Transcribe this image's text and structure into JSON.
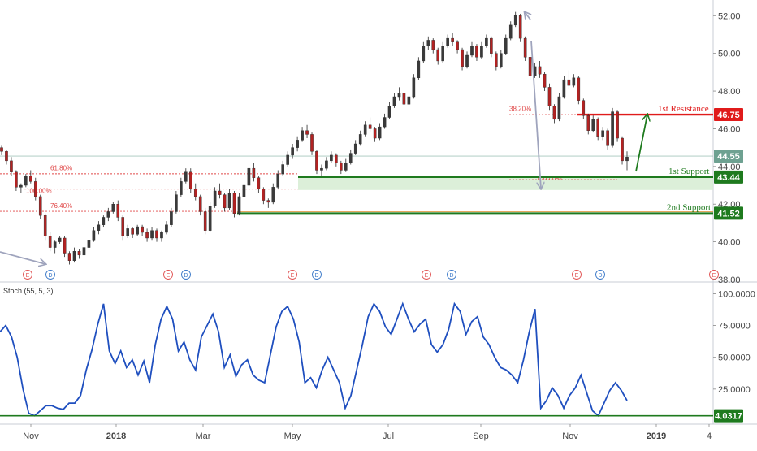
{
  "chart_data": {
    "type": "candlestick",
    "price_axis": {
      "ticks": [
        "52.00",
        "50.00",
        "48.00",
        "46.00",
        "44.00",
        "42.00",
        "40.00",
        "38.00"
      ],
      "range": [
        38.0,
        52.4
      ]
    },
    "time_axis": {
      "labels": [
        "Nov",
        "2018",
        "Mar",
        "May",
        "Jul",
        "Sep",
        "Nov",
        "2019",
        "4"
      ]
    },
    "current_price": "44.55",
    "levels": [
      {
        "key": "res1",
        "label": "1st Resistance",
        "value": 46.75,
        "tag": "46.75",
        "color": "#e01b1b"
      },
      {
        "key": "sup1",
        "label": "1st Support",
        "value": 43.44,
        "tag": "43.44",
        "color": "#1e7a1e"
      },
      {
        "key": "sup2",
        "label": "2nd Support",
        "value": 41.52,
        "tag": "41.52",
        "color": "#1e7a1e"
      }
    ],
    "fib_labels": {
      "f618": "61.80%",
      "f100a": "100.00%",
      "f764": "76.40%",
      "f382": "38.20%",
      "f100b": "100.00%"
    },
    "event_markers": [
      "E",
      "D",
      "E",
      "D",
      "E",
      "D",
      "E",
      "D",
      "E",
      "D",
      "E"
    ],
    "oscillator": {
      "name": "Stoch (55, 5, 3)",
      "ticks": [
        "100.0000",
        "75.0000",
        "50.0000",
        "25.0000"
      ],
      "range": [
        0,
        100
      ],
      "support_value": 4.0317,
      "support_tag": "4.0317",
      "values": [
        70,
        75,
        66,
        50,
        25,
        6,
        4,
        8,
        12,
        12,
        10,
        9,
        14,
        14,
        20,
        40,
        56,
        76,
        92,
        55,
        45,
        55,
        42,
        48,
        36,
        47,
        30,
        60,
        80,
        90,
        80,
        55,
        62,
        48,
        40,
        66,
        75,
        84,
        70,
        42,
        52,
        35,
        44,
        48,
        36,
        32,
        30,
        52,
        74,
        86,
        90,
        80,
        62,
        30,
        34,
        26,
        40,
        50,
        40,
        30,
        10,
        20,
        40,
        60,
        82,
        92,
        86,
        74,
        68,
        80,
        92,
        80,
        70,
        76,
        80,
        60,
        54,
        60,
        72,
        92,
        86,
        68,
        78,
        82,
        66,
        60,
        50,
        42,
        40,
        36,
        30,
        48,
        70,
        88,
        10,
        16,
        26,
        20,
        10,
        20,
        26,
        36,
        22,
        8,
        4,
        14,
        24,
        30,
        24,
        16
      ]
    },
    "candles": [
      {
        "o": 45.0,
        "h": 45.1,
        "l": 44.6,
        "c": 44.8
      },
      {
        "o": 44.8,
        "h": 44.9,
        "l": 44.1,
        "c": 44.3
      },
      {
        "o": 44.3,
        "h": 44.5,
        "l": 43.5,
        "c": 43.7
      },
      {
        "o": 43.7,
        "h": 43.8,
        "l": 42.7,
        "c": 42.9
      },
      {
        "o": 42.9,
        "h": 43.1,
        "l": 42.6,
        "c": 43.0
      },
      {
        "o": 43.0,
        "h": 43.6,
        "l": 42.9,
        "c": 43.5
      },
      {
        "o": 43.5,
        "h": 43.8,
        "l": 43.1,
        "c": 43.2
      },
      {
        "o": 43.2,
        "h": 43.4,
        "l": 42.2,
        "c": 42.4
      },
      {
        "o": 42.4,
        "h": 42.5,
        "l": 41.2,
        "c": 41.4
      },
      {
        "o": 41.4,
        "h": 41.5,
        "l": 40.1,
        "c": 40.3
      },
      {
        "o": 40.3,
        "h": 40.5,
        "l": 39.5,
        "c": 39.7
      },
      {
        "o": 39.7,
        "h": 40.1,
        "l": 39.4,
        "c": 40.0
      },
      {
        "o": 40.0,
        "h": 40.3,
        "l": 39.9,
        "c": 40.2
      },
      {
        "o": 40.2,
        "h": 40.3,
        "l": 39.2,
        "c": 39.4
      },
      {
        "o": 39.4,
        "h": 39.5,
        "l": 38.8,
        "c": 39.0
      },
      {
        "o": 39.0,
        "h": 39.7,
        "l": 38.9,
        "c": 39.5
      },
      {
        "o": 39.5,
        "h": 39.6,
        "l": 39.1,
        "c": 39.3
      },
      {
        "o": 39.3,
        "h": 39.8,
        "l": 39.2,
        "c": 39.7
      },
      {
        "o": 39.7,
        "h": 40.2,
        "l": 39.6,
        "c": 40.1
      },
      {
        "o": 40.1,
        "h": 40.8,
        "l": 40.0,
        "c": 40.6
      },
      {
        "o": 40.6,
        "h": 41.1,
        "l": 40.4,
        "c": 40.9
      },
      {
        "o": 40.9,
        "h": 41.4,
        "l": 40.8,
        "c": 41.3
      },
      {
        "o": 41.3,
        "h": 41.8,
        "l": 41.1,
        "c": 41.6
      },
      {
        "o": 41.6,
        "h": 42.1,
        "l": 41.5,
        "c": 42.0
      },
      {
        "o": 42.0,
        "h": 42.2,
        "l": 41.1,
        "c": 41.3
      },
      {
        "o": 41.3,
        "h": 41.4,
        "l": 40.1,
        "c": 40.3
      },
      {
        "o": 40.3,
        "h": 40.9,
        "l": 40.2,
        "c": 40.7
      },
      {
        "o": 40.7,
        "h": 40.8,
        "l": 40.2,
        "c": 40.4
      },
      {
        "o": 40.4,
        "h": 40.9,
        "l": 40.3,
        "c": 40.8
      },
      {
        "o": 40.8,
        "h": 40.9,
        "l": 40.3,
        "c": 40.5
      },
      {
        "o": 40.5,
        "h": 40.7,
        "l": 40.0,
        "c": 40.2
      },
      {
        "o": 40.2,
        "h": 40.8,
        "l": 40.1,
        "c": 40.6
      },
      {
        "o": 40.6,
        "h": 40.7,
        "l": 40.0,
        "c": 40.2
      },
      {
        "o": 40.2,
        "h": 40.6,
        "l": 40.0,
        "c": 40.5
      },
      {
        "o": 40.5,
        "h": 41.1,
        "l": 40.4,
        "c": 40.9
      },
      {
        "o": 40.9,
        "h": 41.8,
        "l": 40.8,
        "c": 41.6
      },
      {
        "o": 41.6,
        "h": 42.7,
        "l": 41.5,
        "c": 42.5
      },
      {
        "o": 42.5,
        "h": 43.4,
        "l": 42.4,
        "c": 43.2
      },
      {
        "o": 43.2,
        "h": 43.9,
        "l": 43.1,
        "c": 43.7
      },
      {
        "o": 43.7,
        "h": 43.9,
        "l": 42.6,
        "c": 42.8
      },
      {
        "o": 42.8,
        "h": 43.1,
        "l": 42.2,
        "c": 42.4
      },
      {
        "o": 42.4,
        "h": 42.5,
        "l": 41.4,
        "c": 41.6
      },
      {
        "o": 41.6,
        "h": 41.8,
        "l": 40.4,
        "c": 40.6
      },
      {
        "o": 40.6,
        "h": 42.1,
        "l": 40.5,
        "c": 41.9
      },
      {
        "o": 41.9,
        "h": 42.9,
        "l": 41.8,
        "c": 42.7
      },
      {
        "o": 42.7,
        "h": 43.1,
        "l": 42.3,
        "c": 42.5
      },
      {
        "o": 42.5,
        "h": 42.6,
        "l": 41.6,
        "c": 41.8
      },
      {
        "o": 41.8,
        "h": 42.8,
        "l": 41.7,
        "c": 42.6
      },
      {
        "o": 42.6,
        "h": 42.7,
        "l": 41.3,
        "c": 41.5
      },
      {
        "o": 41.5,
        "h": 42.6,
        "l": 41.4,
        "c": 42.4
      },
      {
        "o": 42.4,
        "h": 43.2,
        "l": 42.3,
        "c": 43.0
      },
      {
        "o": 43.0,
        "h": 44.1,
        "l": 42.9,
        "c": 43.9
      },
      {
        "o": 43.9,
        "h": 44.2,
        "l": 43.2,
        "c": 43.4
      },
      {
        "o": 43.4,
        "h": 43.5,
        "l": 42.6,
        "c": 42.8
      },
      {
        "o": 42.8,
        "h": 42.9,
        "l": 42.0,
        "c": 42.2
      },
      {
        "o": 42.2,
        "h": 42.3,
        "l": 41.8,
        "c": 42.1
      },
      {
        "o": 42.1,
        "h": 43.1,
        "l": 42.0,
        "c": 42.9
      },
      {
        "o": 42.9,
        "h": 43.8,
        "l": 42.8,
        "c": 43.6
      },
      {
        "o": 43.6,
        "h": 44.3,
        "l": 43.5,
        "c": 44.1
      },
      {
        "o": 44.1,
        "h": 44.8,
        "l": 44.0,
        "c": 44.6
      },
      {
        "o": 44.6,
        "h": 45.2,
        "l": 44.4,
        "c": 45.0
      },
      {
        "o": 45.0,
        "h": 45.6,
        "l": 44.8,
        "c": 45.4
      },
      {
        "o": 45.4,
        "h": 46.1,
        "l": 45.3,
        "c": 45.9
      },
      {
        "o": 45.9,
        "h": 46.2,
        "l": 45.5,
        "c": 45.7
      },
      {
        "o": 45.7,
        "h": 45.8,
        "l": 44.6,
        "c": 44.8
      },
      {
        "o": 44.8,
        "h": 44.9,
        "l": 43.6,
        "c": 43.8
      },
      {
        "o": 43.8,
        "h": 44.1,
        "l": 43.5,
        "c": 43.9
      },
      {
        "o": 43.9,
        "h": 44.5,
        "l": 43.8,
        "c": 44.3
      },
      {
        "o": 44.3,
        "h": 44.8,
        "l": 44.2,
        "c": 44.6
      },
      {
        "o": 44.6,
        "h": 44.7,
        "l": 44.0,
        "c": 44.2
      },
      {
        "o": 44.2,
        "h": 44.3,
        "l": 43.6,
        "c": 43.8
      },
      {
        "o": 43.8,
        "h": 44.4,
        "l": 43.7,
        "c": 44.2
      },
      {
        "o": 44.2,
        "h": 44.9,
        "l": 44.1,
        "c": 44.7
      },
      {
        "o": 44.7,
        "h": 45.4,
        "l": 44.6,
        "c": 45.2
      },
      {
        "o": 45.2,
        "h": 45.9,
        "l": 45.1,
        "c": 45.7
      },
      {
        "o": 45.7,
        "h": 46.4,
        "l": 45.6,
        "c": 46.2
      },
      {
        "o": 46.2,
        "h": 46.6,
        "l": 45.8,
        "c": 46.0
      },
      {
        "o": 46.0,
        "h": 46.1,
        "l": 45.3,
        "c": 45.5
      },
      {
        "o": 45.5,
        "h": 46.3,
        "l": 45.4,
        "c": 46.1
      },
      {
        "o": 46.1,
        "h": 46.8,
        "l": 46.0,
        "c": 46.6
      },
      {
        "o": 46.6,
        "h": 47.4,
        "l": 46.5,
        "c": 47.2
      },
      {
        "o": 47.2,
        "h": 47.9,
        "l": 47.1,
        "c": 47.7
      },
      {
        "o": 47.7,
        "h": 48.2,
        "l": 47.5,
        "c": 47.9
      },
      {
        "o": 47.9,
        "h": 48.0,
        "l": 47.1,
        "c": 47.3
      },
      {
        "o": 47.3,
        "h": 47.9,
        "l": 47.2,
        "c": 47.7
      },
      {
        "o": 47.7,
        "h": 48.9,
        "l": 47.6,
        "c": 48.7
      },
      {
        "o": 48.7,
        "h": 49.8,
        "l": 48.6,
        "c": 49.6
      },
      {
        "o": 49.6,
        "h": 50.6,
        "l": 49.5,
        "c": 50.4
      },
      {
        "o": 50.4,
        "h": 50.9,
        "l": 50.2,
        "c": 50.7
      },
      {
        "o": 50.7,
        "h": 50.8,
        "l": 50.0,
        "c": 50.2
      },
      {
        "o": 50.2,
        "h": 50.3,
        "l": 49.4,
        "c": 49.6
      },
      {
        "o": 49.6,
        "h": 50.6,
        "l": 49.5,
        "c": 50.4
      },
      {
        "o": 50.4,
        "h": 51.0,
        "l": 50.3,
        "c": 50.8
      },
      {
        "o": 50.8,
        "h": 51.1,
        "l": 50.4,
        "c": 50.6
      },
      {
        "o": 50.6,
        "h": 50.7,
        "l": 50.0,
        "c": 50.2
      },
      {
        "o": 50.2,
        "h": 50.3,
        "l": 49.1,
        "c": 49.3
      },
      {
        "o": 49.3,
        "h": 50.1,
        "l": 49.2,
        "c": 49.9
      },
      {
        "o": 49.9,
        "h": 50.6,
        "l": 49.8,
        "c": 50.4
      },
      {
        "o": 50.4,
        "h": 50.5,
        "l": 49.6,
        "c": 49.8
      },
      {
        "o": 49.8,
        "h": 50.6,
        "l": 49.7,
        "c": 50.4
      },
      {
        "o": 50.4,
        "h": 51.0,
        "l": 50.3,
        "c": 50.8
      },
      {
        "o": 50.8,
        "h": 50.9,
        "l": 49.8,
        "c": 50.0
      },
      {
        "o": 50.0,
        "h": 50.1,
        "l": 49.1,
        "c": 49.3
      },
      {
        "o": 49.3,
        "h": 50.2,
        "l": 49.2,
        "c": 50.0
      },
      {
        "o": 50.0,
        "h": 51.0,
        "l": 49.9,
        "c": 50.8
      },
      {
        "o": 50.8,
        "h": 51.7,
        "l": 50.7,
        "c": 51.5
      },
      {
        "o": 51.5,
        "h": 52.2,
        "l": 51.4,
        "c": 52.0
      },
      {
        "o": 52.0,
        "h": 52.1,
        "l": 50.6,
        "c": 50.8
      },
      {
        "o": 50.8,
        "h": 50.9,
        "l": 49.6,
        "c": 49.8
      },
      {
        "o": 49.8,
        "h": 49.9,
        "l": 48.6,
        "c": 48.8
      },
      {
        "o": 48.8,
        "h": 49.5,
        "l": 48.7,
        "c": 49.3
      },
      {
        "o": 49.3,
        "h": 49.6,
        "l": 48.7,
        "c": 48.9
      },
      {
        "o": 48.9,
        "h": 49.0,
        "l": 48.0,
        "c": 48.2
      },
      {
        "o": 48.2,
        "h": 48.4,
        "l": 47.0,
        "c": 47.2
      },
      {
        "o": 47.2,
        "h": 47.3,
        "l": 46.3,
        "c": 46.5
      },
      {
        "o": 46.5,
        "h": 47.9,
        "l": 46.4,
        "c": 47.7
      },
      {
        "o": 47.7,
        "h": 48.8,
        "l": 47.6,
        "c": 48.6
      },
      {
        "o": 48.6,
        "h": 49.1,
        "l": 48.1,
        "c": 48.3
      },
      {
        "o": 48.3,
        "h": 48.9,
        "l": 48.2,
        "c": 48.7
      },
      {
        "o": 48.7,
        "h": 48.8,
        "l": 47.3,
        "c": 47.5
      },
      {
        "o": 47.5,
        "h": 47.6,
        "l": 46.5,
        "c": 46.7
      },
      {
        "o": 46.7,
        "h": 46.8,
        "l": 45.7,
        "c": 45.9
      },
      {
        "o": 45.9,
        "h": 46.7,
        "l": 45.8,
        "c": 46.5
      },
      {
        "o": 46.5,
        "h": 46.6,
        "l": 45.4,
        "c": 45.6
      },
      {
        "o": 45.6,
        "h": 46.1,
        "l": 45.4,
        "c": 45.9
      },
      {
        "o": 45.9,
        "h": 46.0,
        "l": 44.9,
        "c": 45.1
      },
      {
        "o": 45.1,
        "h": 47.1,
        "l": 45.0,
        "c": 46.9
      },
      {
        "o": 46.9,
        "h": 47.0,
        "l": 45.3,
        "c": 45.5
      },
      {
        "o": 45.5,
        "h": 45.6,
        "l": 44.1,
        "c": 44.3
      },
      {
        "o": 44.3,
        "h": 44.8,
        "l": 43.8,
        "c": 44.5
      }
    ]
  }
}
